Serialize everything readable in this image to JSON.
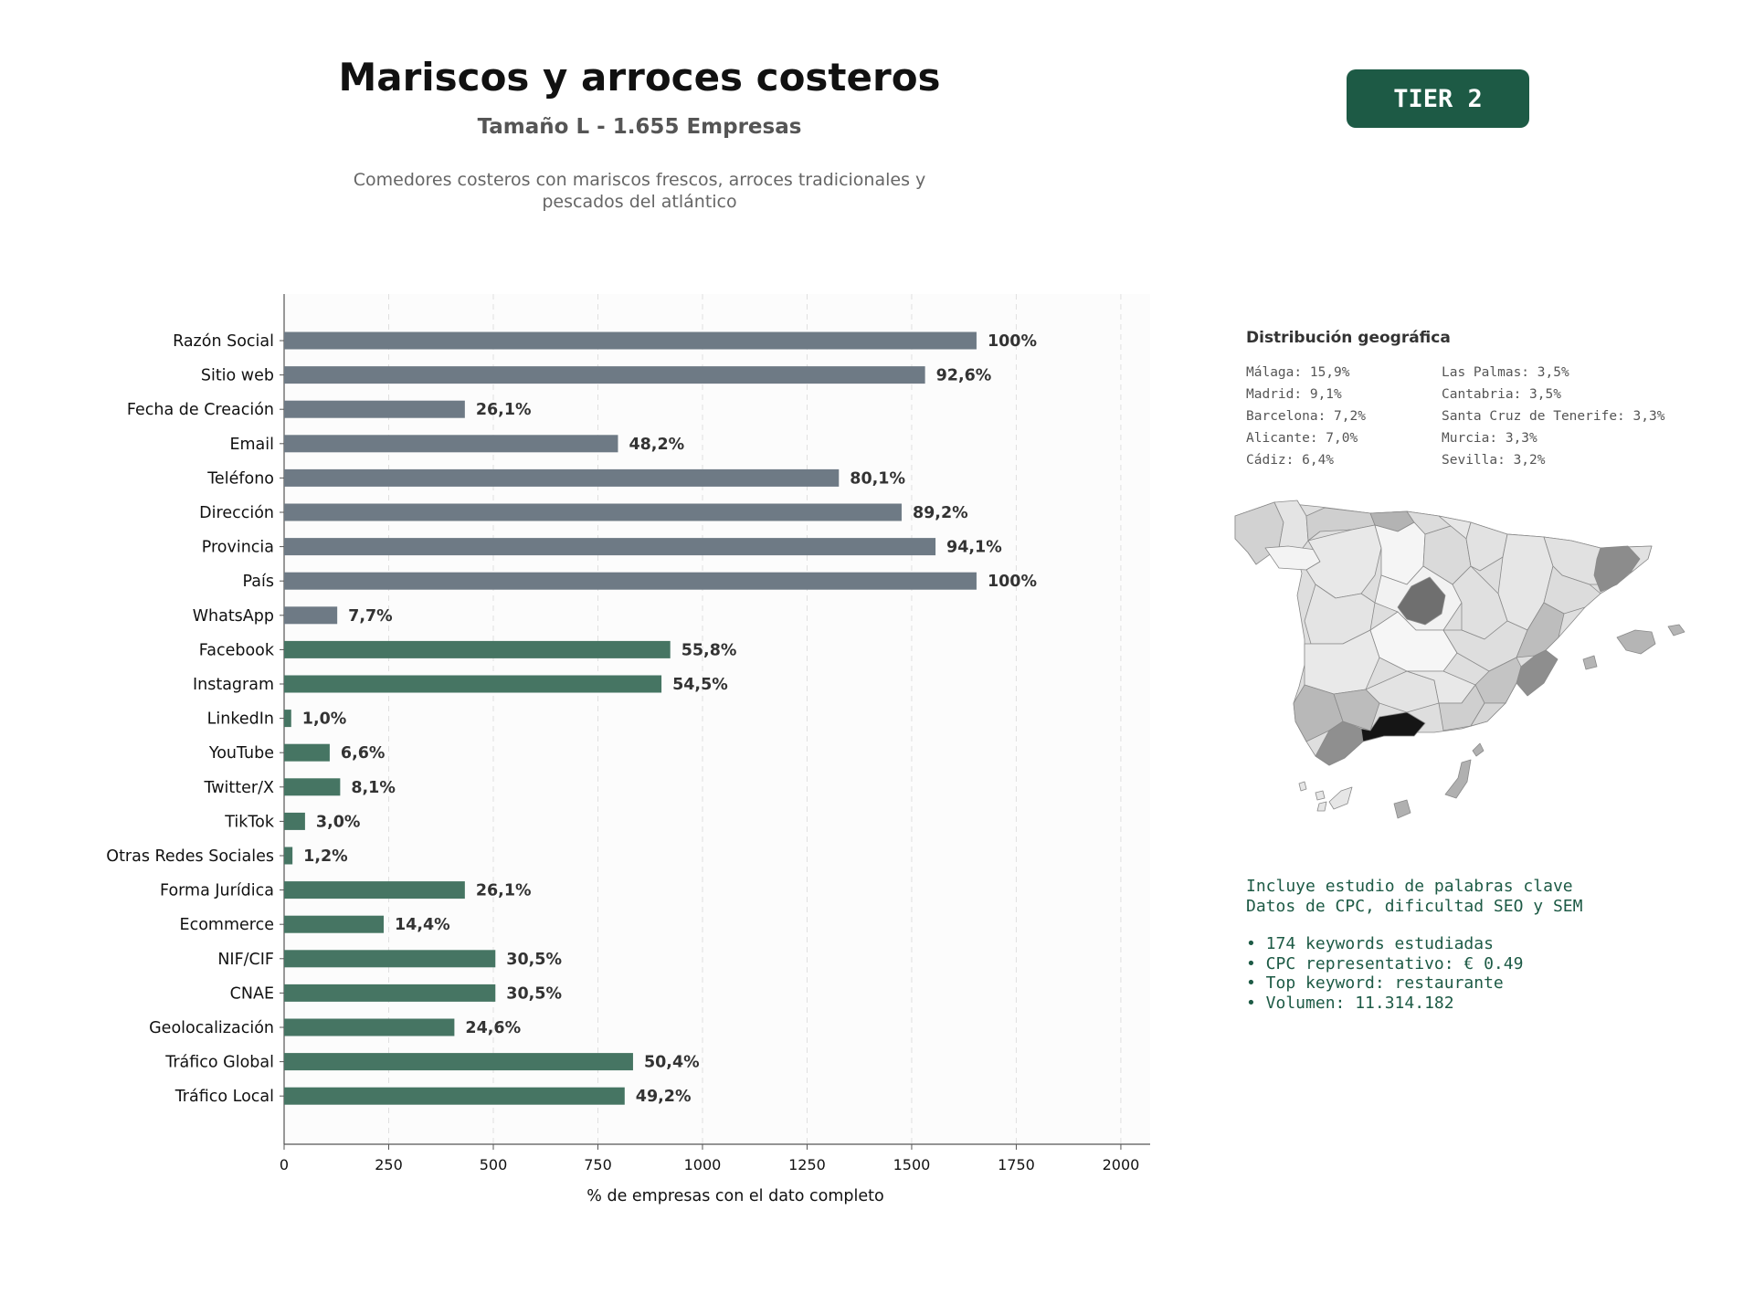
{
  "header": {
    "title": "Mariscos y arroces costeros",
    "subtitle": "Tamaño L - 1.655 Empresas",
    "description_line1": "Comedores costeros con mariscos frescos, arroces tradicionales y",
    "description_line2": "pescados del atlántico",
    "tier": "TIER 2"
  },
  "chart_data": {
    "type": "bar",
    "orientation": "horizontal",
    "title": "",
    "xlabel": "% de empresas con el dato completo",
    "ylabel": "",
    "xlim": [
      0,
      2070
    ],
    "xticks": [
      0,
      250,
      500,
      750,
      1000,
      1250,
      1500,
      1750,
      2000
    ],
    "xtick_labels": [
      "0",
      "250",
      "500",
      "750",
      "1000",
      "1250",
      "1500",
      "1750",
      "2000"
    ],
    "grid": "vertical dashed",
    "categories": [
      "Razón Social",
      "Sitio web",
      "Fecha de Creación",
      "Email",
      "Teléfono",
      "Dirección",
      "Provincia",
      "País",
      "WhatsApp",
      "Facebook",
      "Instagram",
      "LinkedIn",
      "YouTube",
      "Twitter/X",
      "TikTok",
      "Otras Redes Sociales",
      "Forma Jurídica",
      "Ecommerce",
      "NIF/CIF",
      "CNAE",
      "Geolocalización",
      "Tráfico Global",
      "Tráfico Local"
    ],
    "values": [
      1655,
      1532,
      432,
      798,
      1326,
      1476,
      1557,
      1655,
      127,
      923,
      902,
      17,
      109,
      134,
      50,
      20,
      432,
      238,
      505,
      505,
      407,
      834,
      814
    ],
    "labels": [
      "100%",
      "92,6%",
      "26,1%",
      "48,2%",
      "80,1%",
      "89,2%",
      "94,1%",
      "100%",
      "7,7%",
      "55,8%",
      "54,5%",
      "1,0%",
      "6,6%",
      "8,1%",
      "3,0%",
      "1,2%",
      "26,1%",
      "14,4%",
      "30,5%",
      "30,5%",
      "24,6%",
      "50,4%",
      "49,2%"
    ],
    "bar_colors": [
      "#6e7a85",
      "#6e7a85",
      "#6e7a85",
      "#6e7a85",
      "#6e7a85",
      "#6e7a85",
      "#6e7a85",
      "#6e7a85",
      "#6e7a85",
      "#467563",
      "#467563",
      "#467563",
      "#467563",
      "#467563",
      "#467563",
      "#467563",
      "#467563",
      "#467563",
      "#467563",
      "#467563",
      "#467563",
      "#467563",
      "#467563"
    ]
  },
  "geo": {
    "title": "Distribución geográfica",
    "items": [
      "Málaga: 15,9%",
      "Las Palmas: 3,5%",
      "Madrid: 9,1%",
      "Cantabria: 3,5%",
      "Barcelona: 7,2%",
      "Santa Cruz de Tenerife: 3,3%",
      "Alicante: 7,0%",
      "Murcia: 3,3%",
      "Cádiz: 6,4%",
      "Sevilla: 3,2%"
    ]
  },
  "seo": {
    "line1": "Incluye estudio de palabras clave",
    "line2": "Datos de CPC, dificultad SEO y SEM",
    "bullets": [
      "• 174 keywords estudiadas",
      "• CPC representativo: € 0.49",
      "• Top keyword: restaurante",
      "• Volumen: 11.314.182"
    ]
  },
  "colors": {
    "grey_bar": "#6e7a85",
    "green_bar": "#467563",
    "accent": "#1d5a45"
  }
}
